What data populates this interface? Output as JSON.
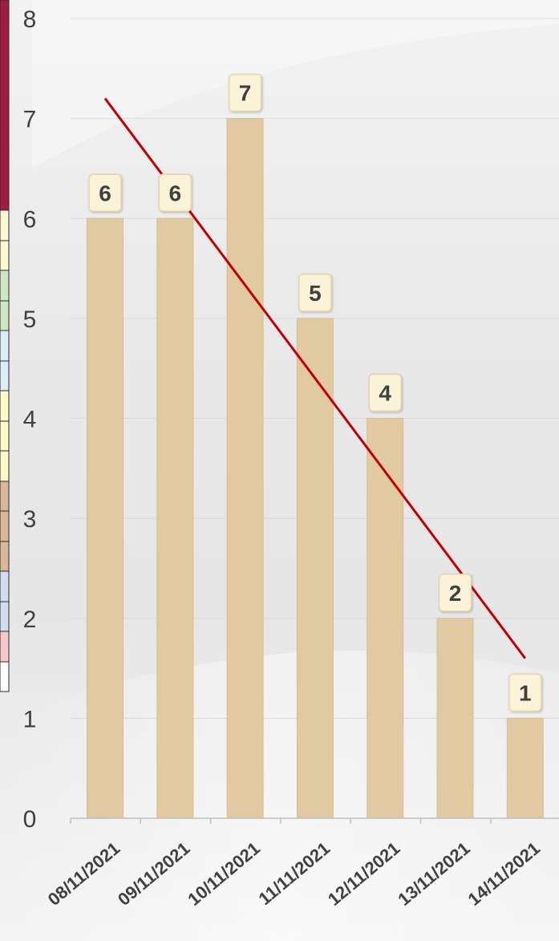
{
  "colors": {
    "bar": "#e1c9a1",
    "bar_stroke": "#d6bd92",
    "label_bg": "#fbf3d8",
    "label_border": "#e3d6ae",
    "label_text": "#404040",
    "trend": "#c00000",
    "axis_text": "#404040",
    "grid": "#d9d9d9",
    "edge_strip": [
      "#a01c44",
      "#fff6d6",
      "#fff6d6",
      "#cfe6c0",
      "#cfe6c0",
      "#d9eef7",
      "#d9eef7",
      "#fff9c9",
      "#fff9c9",
      "#fff9c9",
      "#d8b89a",
      "#d8b89a",
      "#d8b89a",
      "#d4dcef",
      "#d4dcef",
      "#f4c9cc",
      "#ffffff"
    ]
  },
  "chart_data": {
    "type": "bar",
    "title": "",
    "xlabel": "",
    "ylabel": "",
    "categories": [
      "08/11/2021",
      "09/11/2021",
      "10/11/2021",
      "11/11/2021",
      "12/11/2021",
      "13/11/2021",
      "14/11/2021"
    ],
    "values": [
      6,
      6,
      7,
      5,
      4,
      2,
      1
    ],
    "data_labels": [
      "6",
      "6",
      "7",
      "5",
      "4",
      "2",
      "1"
    ],
    "ylim": [
      0,
      8
    ],
    "yticks": [
      0,
      1,
      2,
      3,
      4,
      5,
      6,
      7,
      8
    ],
    "ytick_labels": [
      "0",
      "1",
      "2",
      "3",
      "4",
      "5",
      "6",
      "7",
      "8"
    ],
    "grid": true,
    "legend": "none",
    "trendline": {
      "type": "linear",
      "start": 7.2,
      "end": 1.6
    }
  }
}
